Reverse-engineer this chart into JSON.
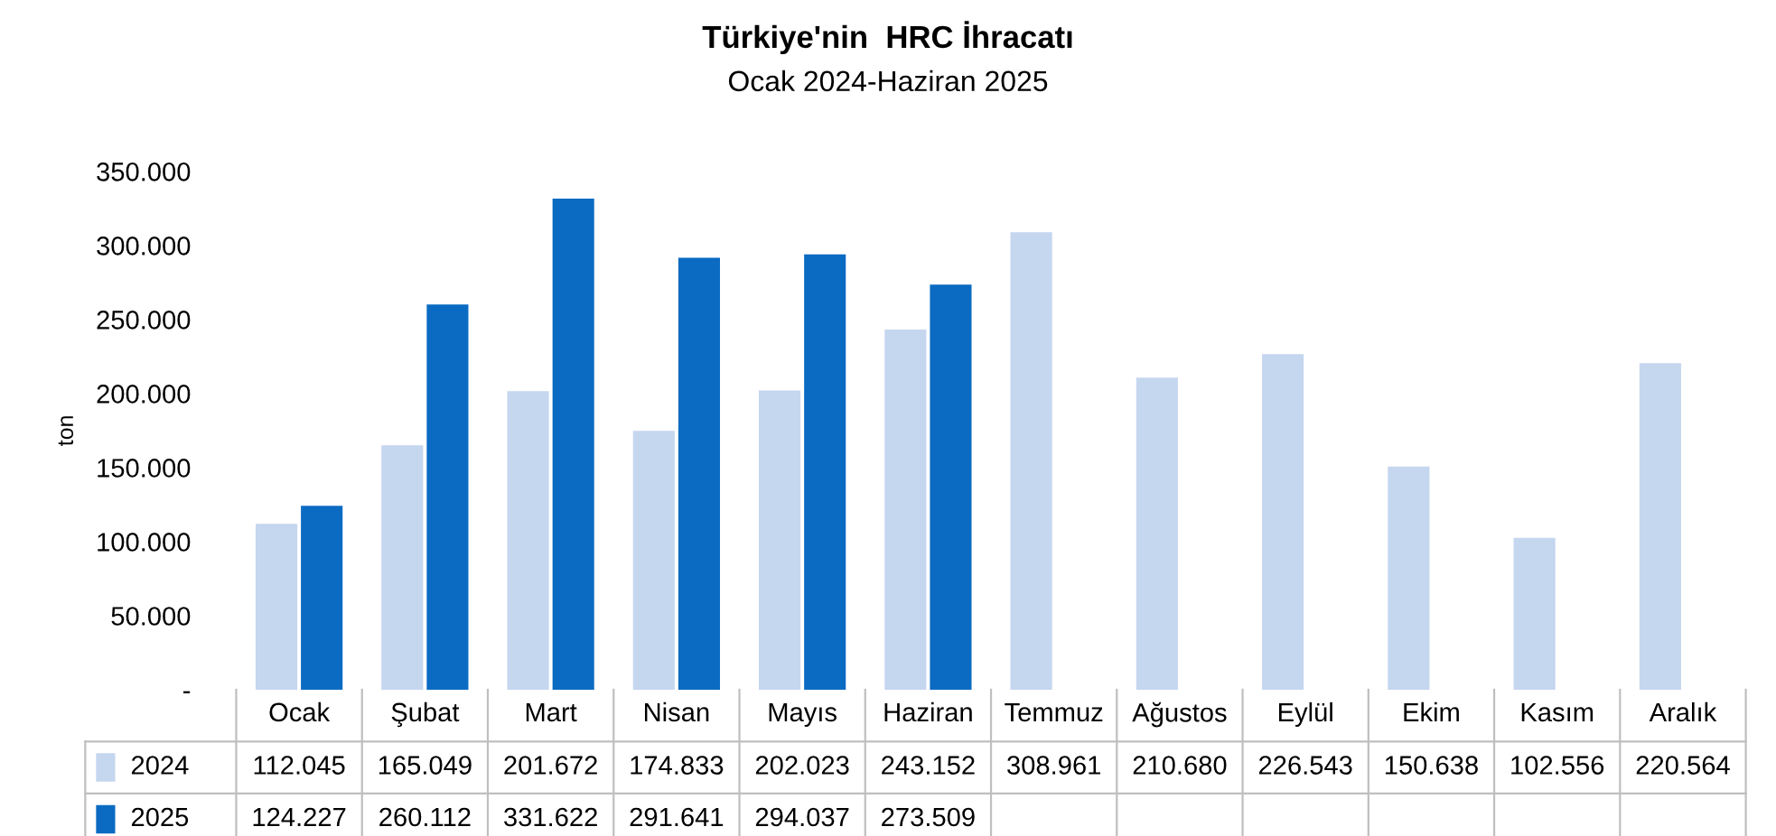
{
  "chart_data": {
    "type": "bar",
    "title": "Türkiye'nin  HRC İhracatı",
    "subtitle": "Ocak 2024-Haziran 2025",
    "ylabel": "ton",
    "categories": [
      "Ocak",
      "Şubat",
      "Mart",
      "Nisan",
      "Mayıs",
      "Haziran",
      "Temmuz",
      "Ağustos",
      "Eylül",
      "Ekim",
      "Kasım",
      "Aralık"
    ],
    "series": [
      {
        "name": "2024",
        "color": "#c5d6ef",
        "values": [
          112045,
          165049,
          201672,
          174833,
          202023,
          243152,
          308961,
          210680,
          226543,
          150638,
          102556,
          220564
        ],
        "value_labels": [
          "112.045",
          "165.049",
          "201.672",
          "174.833",
          "202.023",
          "243.152",
          "308.961",
          "210.680",
          "226.543",
          "150.638",
          "102.556",
          "220.564"
        ]
      },
      {
        "name": "2025",
        "color": "#0b6bc2",
        "values": [
          124227,
          260112,
          331622,
          291641,
          294037,
          273509,
          null,
          null,
          null,
          null,
          null,
          null
        ],
        "value_labels": [
          "124.227",
          "260.112",
          "331.622",
          "291.641",
          "294.037",
          "273.509",
          null,
          null,
          null,
          null,
          null,
          null
        ]
      }
    ],
    "ylim": [
      0,
      350000
    ],
    "yticks": [
      {
        "value": 0,
        "label": "-"
      },
      {
        "value": 50000,
        "label": "50.000"
      },
      {
        "value": 100000,
        "label": "100.000"
      },
      {
        "value": 150000,
        "label": "150.000"
      },
      {
        "value": 200000,
        "label": "200.000"
      },
      {
        "value": 250000,
        "label": "250.000"
      },
      {
        "value": 300000,
        "label": "300.000"
      },
      {
        "value": 350000,
        "label": "350.000"
      }
    ],
    "grid": false,
    "legend": "bottom"
  }
}
